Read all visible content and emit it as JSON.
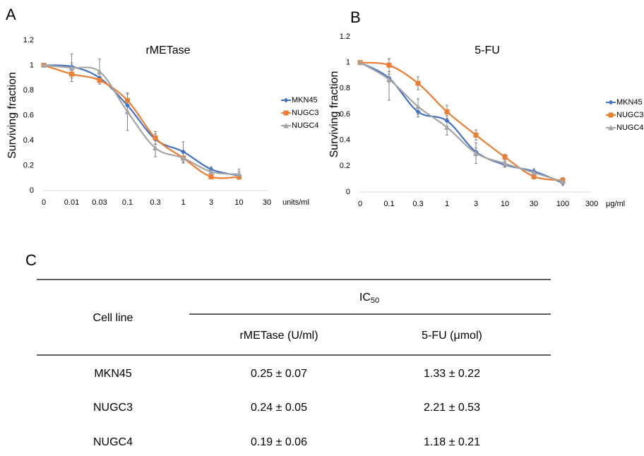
{
  "panels": [
    "A",
    "B",
    "C"
  ],
  "chart_data": [
    {
      "type": "line",
      "title": "rMETase",
      "y_label": "Surviving fraction",
      "x_label": "units/ml",
      "categories": [
        "0",
        "0.01",
        "0.03",
        "0.1",
        "0.3",
        "1",
        "3",
        "10",
        "30"
      ],
      "ylim": [
        0,
        1.2
      ],
      "yticks": [
        0,
        0.2,
        0.4,
        0.6,
        0.8,
        1,
        1.2
      ],
      "grid": false,
      "legend": "right",
      "smooth": true,
      "series": [
        {
          "name": "MKN45",
          "color": "#4472c4",
          "marker": "diamond",
          "values": [
            1,
            0.99,
            0.9,
            0.68,
            0.41,
            0.31,
            0.17,
            0.12,
            null
          ],
          "errors": [
            0,
            0.03,
            0.03,
            0.05,
            0.04,
            0.08,
            0.02,
            0.03,
            null
          ]
        },
        {
          "name": "NUGC3",
          "color": "#ed7d31",
          "marker": "square",
          "values": [
            1,
            0.93,
            0.88,
            0.72,
            0.42,
            0.26,
            0.11,
            0.11,
            null
          ],
          "errors": [
            0,
            0.03,
            0.03,
            0.05,
            0.05,
            0.04,
            0.01,
            0.02,
            null
          ]
        },
        {
          "name": "NUGC4",
          "color": "#a5a5a5",
          "marker": "triangle",
          "values": [
            1,
            0.98,
            0.95,
            0.63,
            0.34,
            0.26,
            0.15,
            0.13,
            null
          ],
          "errors": [
            0,
            0.11,
            0.1,
            0.15,
            0.07,
            0.04,
            0.03,
            0.04,
            null
          ]
        }
      ]
    },
    {
      "type": "line",
      "title": "5-FU",
      "y_label": "Surviving fraction",
      "x_label": "μg/ml",
      "categories": [
        "0",
        "0.1",
        "0.3",
        "1",
        "3",
        "10",
        "30",
        "100",
        "300"
      ],
      "ylim": [
        0,
        1.2
      ],
      "yticks": [
        0,
        0.2,
        0.4,
        0.6,
        0.8,
        1,
        1.2
      ],
      "grid": false,
      "legend": "right",
      "smooth": true,
      "series": [
        {
          "name": "MKN45",
          "color": "#4472c4",
          "marker": "diamond",
          "values": [
            1,
            0.88,
            0.62,
            0.55,
            0.31,
            0.21,
            0.16,
            0.07,
            null
          ],
          "errors": [
            0,
            0.03,
            0.04,
            0.04,
            0.03,
            0.02,
            0.02,
            0.01,
            null
          ]
        },
        {
          "name": "NUGC3",
          "color": "#ed7d31",
          "marker": "square",
          "values": [
            1,
            0.98,
            0.84,
            0.62,
            0.44,
            0.27,
            0.12,
            0.09,
            null
          ],
          "errors": [
            0,
            0.05,
            0.05,
            0.05,
            0.04,
            0.02,
            0.02,
            0.02,
            null
          ]
        },
        {
          "name": "NUGC4",
          "color": "#a5a5a5",
          "marker": "triangle",
          "values": [
            1,
            0.87,
            0.66,
            0.5,
            0.3,
            0.22,
            0.15,
            0.08,
            null
          ],
          "errors": [
            0,
            0.16,
            0.06,
            0.06,
            0.08,
            0.02,
            0.03,
            0.03,
            null
          ]
        }
      ]
    }
  ],
  "table": {
    "header": {
      "row_label": "Cell line",
      "group": {
        "main": "IC",
        "sub": "50"
      },
      "columns": [
        "rMETase (U/ml)",
        "5-FU (μmol)"
      ]
    },
    "rows": [
      [
        "MKN45",
        "0.25 ± 0.07",
        "1.33 ± 0.22"
      ],
      [
        "NUGC3",
        "0.24 ± 0.05",
        "2.21 ± 0.53"
      ],
      [
        "NUGC4",
        "0.19 ± 0.06",
        "1.18 ± 0.21"
      ]
    ]
  }
}
